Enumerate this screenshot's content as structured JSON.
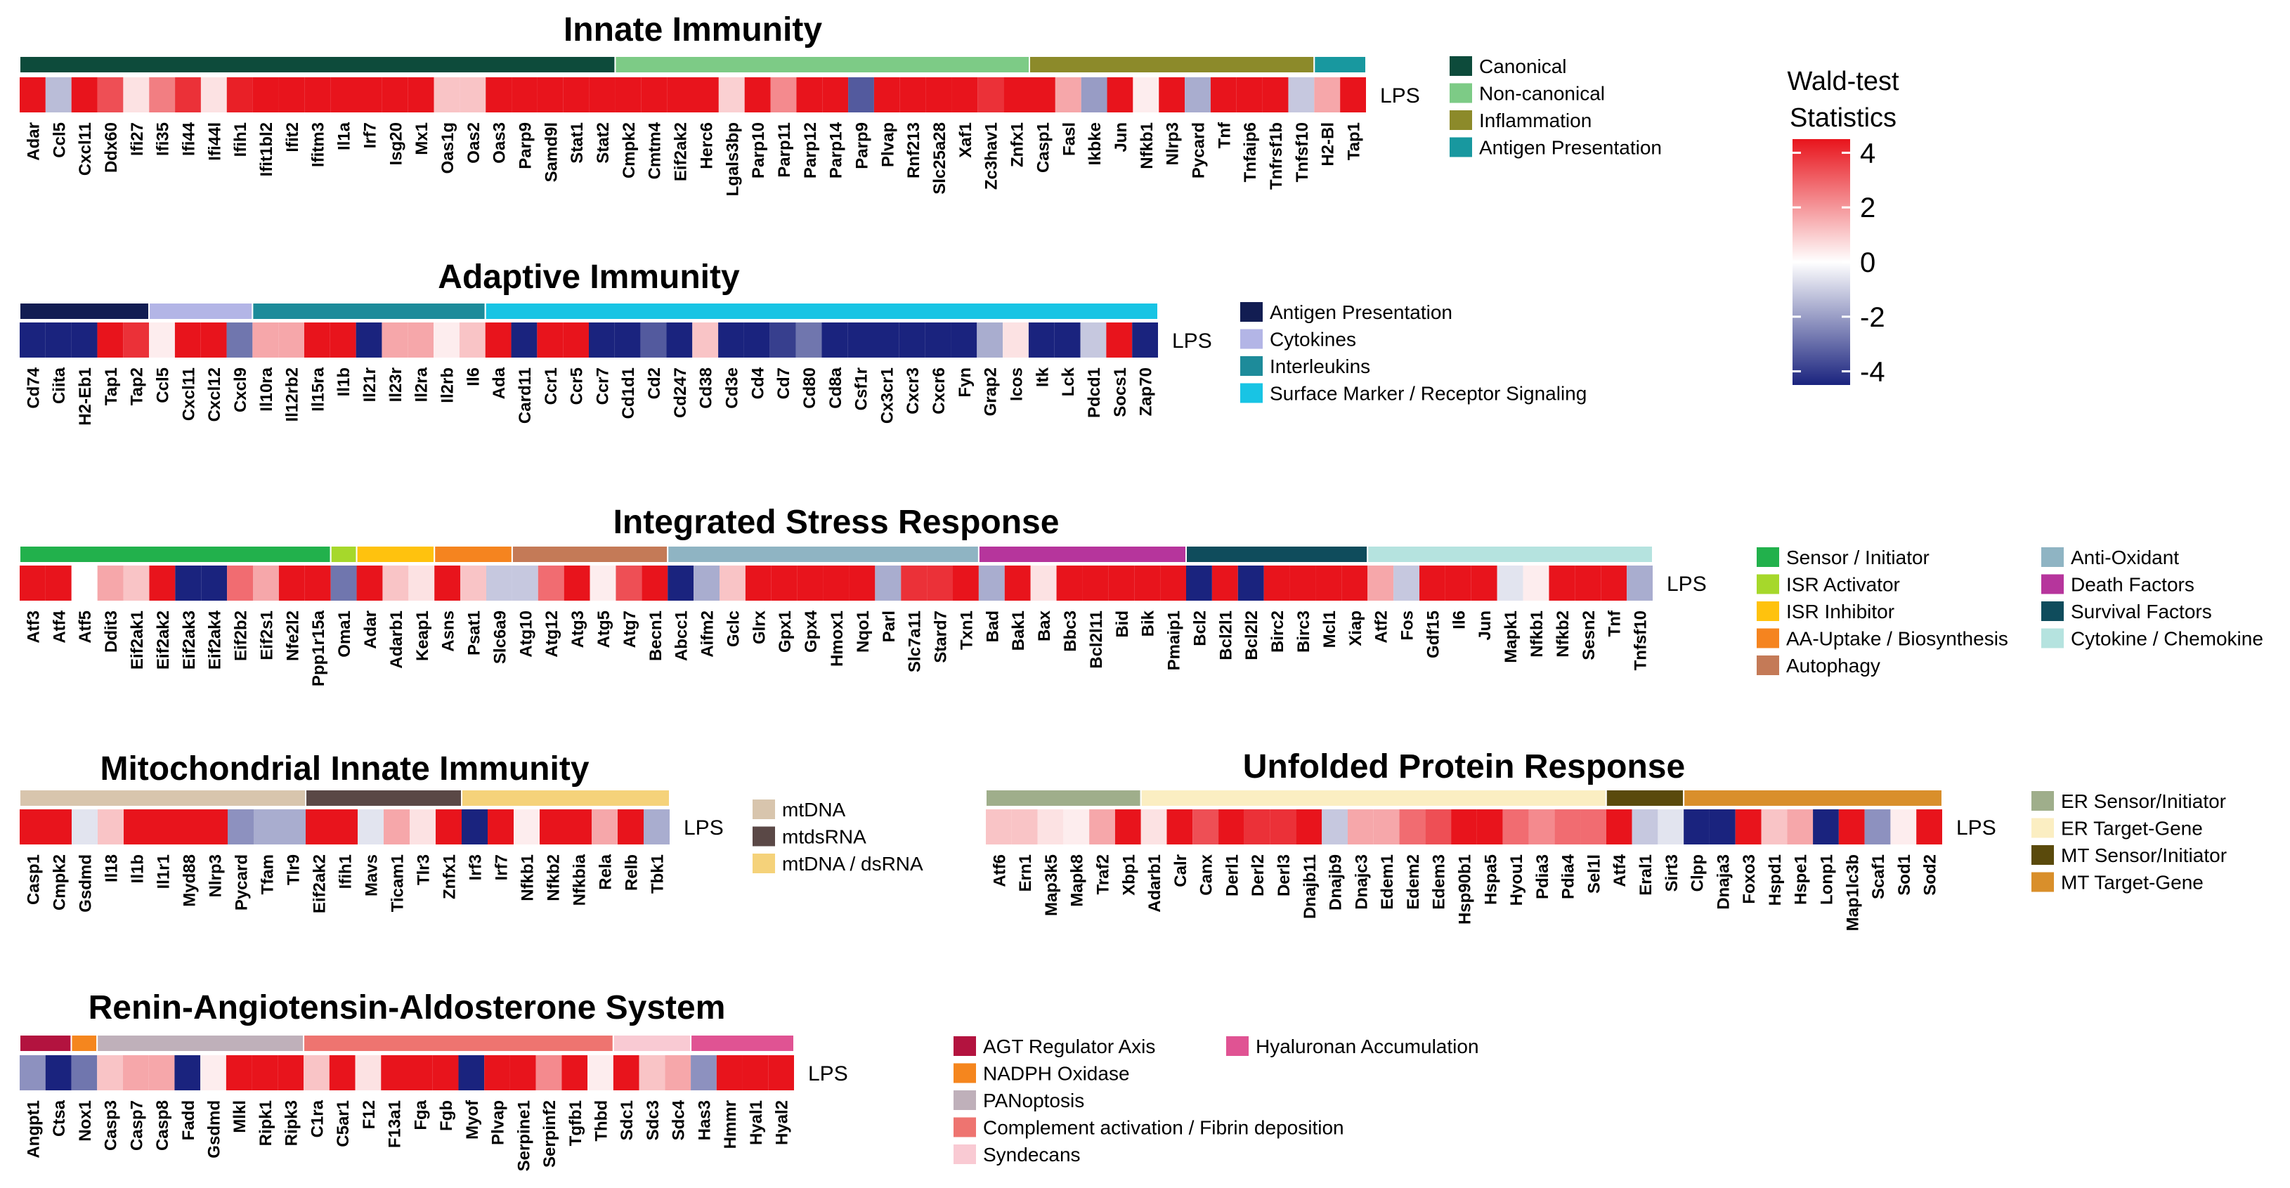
{
  "condition_label": "LPS",
  "colorbar": {
    "title_lines": [
      "Wald-test",
      "Statistics"
    ],
    "ticks": [
      4,
      2,
      0,
      -2,
      -4
    ],
    "range": [
      -4.5,
      4.5
    ],
    "low_color": "#1a237e",
    "mid_color": "#ffffff",
    "high_color": "#e8141c"
  },
  "chart_data": [
    {
      "type": "heatmap",
      "title": "Innate Immunity",
      "categories": [
        {
          "name": "Canonical",
          "color": "#0d4b3b",
          "genes": [
            "Adar",
            "Ccl5",
            "Cxcl11",
            "Ddx60",
            "Ifi27",
            "Ifi35",
            "Ifi44",
            "Ifi44l",
            "Ifih1",
            "Ifit1bl2",
            "Ifit2",
            "Ifitm3",
            "Il1a",
            "Irf7",
            "Isg20",
            "Mx1",
            "Oas1g",
            "Oas2",
            "Oas3",
            "Parp9",
            "Samd9l",
            "Stat1",
            "Stat2"
          ],
          "values": [
            4.5,
            -1.2,
            4.5,
            3.0,
            0.5,
            2.2,
            3.5,
            0.5,
            3.8,
            4.5,
            4.5,
            4.5,
            4.5,
            4.5,
            4.5,
            4.5,
            1.0,
            1.0,
            4.5,
            4.5,
            4.5,
            4.5,
            4.5
          ]
        },
        {
          "name": "Non-canonical",
          "color": "#7dcb86",
          "genes": [
            "Cmpk2",
            "Cmtm4",
            "Eif2ak2",
            "Herc6",
            "Lgals3bp",
            "Parp10",
            "Parp11",
            "Parp12",
            "Parp14",
            "Parp9",
            "Plvap",
            "Rnf213",
            "Slc25a28",
            "Xaf1",
            "Zc3hav1",
            "Znfx1"
          ],
          "values": [
            4.5,
            4.5,
            4.5,
            4.5,
            0.8,
            4.5,
            2.0,
            4.5,
            4.5,
            -3.0,
            4.5,
            4.5,
            4.5,
            4.5,
            3.5,
            4.5
          ]
        },
        {
          "name": "Inflammation",
          "color": "#8c8a2a",
          "genes": [
            "Casp1",
            "Fasl",
            "Ikbke",
            "Jun",
            "Nfkb1",
            "Nlrp3",
            "Pycard",
            "Tnf",
            "Tnfaip6",
            "Tnfrsf1b",
            "Tnfsf10"
          ],
          "values": [
            4.5,
            1.5,
            -1.8,
            4.5,
            0.3,
            4.5,
            -1.5,
            4.5,
            4.5,
            4.5,
            -1.0
          ]
        },
        {
          "name": "Antigen Presentation",
          "color": "#18989f",
          "genes": [
            "H2-Bl",
            "Tap1"
          ],
          "values": [
            1.5,
            4.5
          ]
        }
      ]
    },
    {
      "type": "heatmap",
      "title": "Adaptive Immunity",
      "categories": [
        {
          "name": "Antigen Presentation",
          "color": "#121d52",
          "genes": [
            "Cd74",
            "Ciita",
            "H2-Eb1",
            "Tap1",
            "Tap2"
          ],
          "values": [
            -4.5,
            -4.5,
            -4.5,
            4.5,
            3.5
          ]
        },
        {
          "name": "Cytokines",
          "color": "#b3b5e6",
          "genes": [
            "Ccl5",
            "Cxcl11",
            "Cxcl12",
            "Cxcl9"
          ],
          "values": [
            0.3,
            4.5,
            4.5,
            -2.5
          ]
        },
        {
          "name": "Interleukins",
          "color": "#1d8b9a",
          "genes": [
            "Il10ra",
            "Il12rb2",
            "Il15ra",
            "Il1b",
            "Il21r",
            "Il23r",
            "Il2ra",
            "Il2rb",
            "Il6"
          ],
          "values": [
            1.5,
            1.5,
            4.5,
            4.5,
            -4.5,
            1.5,
            1.5,
            0.3,
            1.0
          ]
        },
        {
          "name": "Surface Marker / Receptor Signaling",
          "color": "#18c4e4",
          "genes": [
            "Ada",
            "Card11",
            "Ccr1",
            "Ccr5",
            "Ccr7",
            "Cd1d1",
            "Cd2",
            "Cd247",
            "Cd38",
            "Cd3e",
            "Cd4",
            "Cd7",
            "Cd80",
            "Cd8a",
            "Csf1r",
            "Cx3cr1",
            "Cxcr3",
            "Cxcr6",
            "Fyn",
            "Grap2",
            "Icos",
            "Itk",
            "Lck",
            "Pdcd1",
            "Socs1",
            "Zap70"
          ],
          "values": [
            4.5,
            -4.5,
            4.5,
            4.5,
            -4.5,
            -4.5,
            -3.0,
            -4.5,
            1.0,
            -4.5,
            -4.5,
            -3.5,
            -2.5,
            -4.5,
            -4.5,
            -4.5,
            -4.5,
            -4.5,
            -4.5,
            -1.5,
            0.5,
            -4.5,
            -4.5,
            -1.0,
            4.5,
            -4.5
          ]
        }
      ]
    },
    {
      "type": "heatmap",
      "title": "Integrated Stress Response",
      "categories": [
        {
          "name": "Sensor / Initiator",
          "color": "#22b14c",
          "genes": [
            "Atf3",
            "Atf4",
            "Atf5",
            "Ddit3",
            "Eif2ak1",
            "Eif2ak2",
            "Eif2ak3",
            "Eif2ak4",
            "Eif2b2",
            "Eif2s1",
            "Nfe2l2",
            "Ppp1r15a"
          ],
          "values": [
            4.5,
            4.5,
            0.0,
            1.5,
            1.0,
            4.5,
            -4.5,
            -4.5,
            2.5,
            1.5,
            4.5,
            4.5
          ]
        },
        {
          "name": "ISR Activator",
          "color": "#a6d82b",
          "genes": [
            "Oma1"
          ],
          "values": [
            -2.5
          ]
        },
        {
          "name": "ISR Inhibitor",
          "color": "#ffc20e",
          "genes": [
            "Adar",
            "Adarb1",
            "Keap1"
          ],
          "values": [
            4.5,
            1.0,
            0.5
          ]
        },
        {
          "name": "AA-Uptake / Biosynthesis",
          "color": "#f5841f",
          "genes": [
            "Asns",
            "Psat1",
            "Slc6a9"
          ],
          "values": [
            4.5,
            1.0,
            -1.0
          ]
        },
        {
          "name": "Autophagy",
          "color": "#c47a57",
          "genes": [
            "Atg10",
            "Atg12",
            "Atg3",
            "Atg5",
            "Atg7",
            "Becn1"
          ],
          "values": [
            -1.0,
            2.5,
            4.5,
            0.3,
            3.0,
            4.5
          ]
        },
        {
          "name": "Anti-Oxidant",
          "color": "#8fb4c3",
          "genes": [
            "Abcc1",
            "Aifm2",
            "Gclc",
            "Glrx",
            "Gpx1",
            "Gpx4",
            "Hmox1",
            "Nqo1",
            "Parl",
            "Slc7a11",
            "Stard7",
            "Txn1"
          ],
          "values": [
            -4.5,
            -1.5,
            1.0,
            4.5,
            4.5,
            4.5,
            4.5,
            4.5,
            -1.5,
            3.5,
            3.5,
            4.5
          ]
        },
        {
          "name": "Death Factors",
          "color": "#b6359c",
          "genes": [
            "Bad",
            "Bak1",
            "Bax",
            "Bbc3",
            "Bcl2l11",
            "Bid",
            "Bik",
            "Pmaip1"
          ],
          "values": [
            -1.5,
            4.5,
            0.5,
            4.5,
            4.5,
            4.5,
            4.5,
            4.5
          ]
        },
        {
          "name": "Survival Factors",
          "color": "#0f4c5c",
          "genes": [
            "Bcl2",
            "Bcl2l1",
            "Bcl2l2",
            "Birc2",
            "Birc3",
            "Mcl1",
            "Xiap"
          ],
          "values": [
            -4.5,
            4.5,
            -4.5,
            4.5,
            4.5,
            4.5,
            4.5
          ]
        },
        {
          "name": "Cytokine / Chemokine",
          "color": "#b5e3df",
          "genes": [
            "Atf2",
            "Fos",
            "Gdf15",
            "Il6",
            "Jun",
            "Mapk1",
            "Nfkb1",
            "Nfkb2",
            "Sesn2",
            "Tnf",
            "Tnfsf10"
          ],
          "values": [
            1.5,
            -1.0,
            4.5,
            4.5,
            4.5,
            -0.5,
            0.3,
            4.5,
            4.5,
            4.5,
            -1.5
          ]
        }
      ]
    },
    {
      "type": "heatmap",
      "title": "Mitochondrial Innate Immunity",
      "categories": [
        {
          "name": "mtDNA",
          "color": "#d8c5ad",
          "genes": [
            "Casp1",
            "Cmpk2",
            "Gsdmd",
            "Il18",
            "Il1b",
            "Il1r1",
            "Myd88",
            "Nlrp3",
            "Pycard",
            "Tfam",
            "Tlr9"
          ],
          "values": [
            4.5,
            4.5,
            -0.5,
            1.0,
            4.5,
            4.5,
            4.5,
            4.5,
            -2.0,
            -1.5,
            -1.5
          ]
        },
        {
          "name": "mtdsRNA",
          "color": "#5a4846",
          "genes": [
            "Eif2ak2",
            "Ifih1",
            "Mavs",
            "Ticam1",
            "Tlr3",
            "Znfx1"
          ],
          "values": [
            4.5,
            4.5,
            -0.5,
            1.5,
            0.5,
            4.5
          ]
        },
        {
          "name": "mtDNA / dsRNA",
          "color": "#f5d27a",
          "genes": [
            "Irf3",
            "Irf7",
            "Nfkb1",
            "Nfkb2",
            "Nfkbia",
            "Rela",
            "Relb",
            "Tbk1"
          ],
          "values": [
            -4.5,
            4.5,
            0.3,
            4.5,
            4.5,
            1.5,
            4.5,
            -1.5
          ]
        }
      ]
    },
    {
      "type": "heatmap",
      "title": "Unfolded Protein Response",
      "categories": [
        {
          "name": "ER Sensor/Initiator",
          "color": "#9fae8b",
          "genes": [
            "Atf6",
            "Ern1",
            "Map3k5",
            "Mapk8",
            "Traf2",
            "Xbp1"
          ],
          "values": [
            1.0,
            1.0,
            0.5,
            0.3,
            1.5,
            4.5
          ]
        },
        {
          "name": "ER Target-Gene",
          "color": "#fbeec2",
          "genes": [
            "Adarb1",
            "Calr",
            "Canx",
            "Derl1",
            "Derl2",
            "Derl3",
            "Dnajb11",
            "Dnajb9",
            "Dnajc3",
            "Edem1",
            "Edem2",
            "Edem3",
            "Hsp90b1",
            "Hspa5",
            "Hyou1",
            "Pdia3",
            "Pdia4",
            "Sel1l"
          ],
          "values": [
            0.5,
            4.5,
            3.0,
            4.5,
            3.5,
            3.5,
            4.5,
            -1.0,
            1.5,
            1.5,
            2.5,
            3.0,
            4.5,
            4.5,
            2.5,
            2.0,
            2.5,
            2.5
          ]
        },
        {
          "name": "MT Sensor/Initiator",
          "color": "#5a4a0c",
          "genes": [
            "Atf4",
            "Eral1",
            "Sirt3"
          ],
          "values": [
            4.5,
            -1.0,
            -0.5
          ]
        },
        {
          "name": "MT Target-Gene",
          "color": "#d98f2b",
          "genes": [
            "Clpp",
            "Dnaja3",
            "Foxo3",
            "Hspd1",
            "Hspe1",
            "Lonp1",
            "Map1lc3b",
            "Scaf1",
            "Sod1",
            "Sod2"
          ],
          "values": [
            -4.5,
            -4.5,
            4.5,
            1.0,
            1.5,
            -4.5,
            4.5,
            -2.0,
            0.3,
            4.5
          ]
        }
      ]
    },
    {
      "type": "heatmap",
      "title": "Renin-Angiotensin-Aldosterone System",
      "categories": [
        {
          "name": "AGT Regulator Axis",
          "color": "#b3133f",
          "genes": [
            "Angpt1",
            "Ctsa"
          ],
          "values": [
            -2.0,
            -4.5
          ]
        },
        {
          "name": "NADPH Oxidase",
          "color": "#f5861e",
          "genes": [
            "Nox1"
          ],
          "values": [
            -2.5
          ]
        },
        {
          "name": "PANoptosis",
          "color": "#bfb0ba",
          "genes": [
            "Casp3",
            "Casp7",
            "Casp8",
            "Fadd",
            "Gsdmd",
            "Mlkl",
            "Ripk1",
            "Ripk3"
          ],
          "values": [
            1.0,
            1.5,
            1.5,
            -4.5,
            0.3,
            4.5,
            4.5,
            4.5
          ]
        },
        {
          "name": "Complement activation / Fibrin deposition",
          "color": "#ee7470",
          "genes": [
            "C1ra",
            "C5ar1",
            "F12",
            "F13a1",
            "Fga",
            "Fgb",
            "Myof",
            "Plvap",
            "Serpine1",
            "Serpinf2",
            "Tgfb1",
            "Thbd"
          ],
          "values": [
            1.0,
            4.5,
            0.5,
            4.5,
            4.5,
            4.5,
            -4.5,
            4.5,
            4.5,
            2.0,
            4.5,
            0.3
          ]
        },
        {
          "name": "Syndecans",
          "color": "#f9cad3",
          "genes": [
            "Sdc1",
            "Sdc3",
            "Sdc4"
          ],
          "values": [
            4.5,
            1.0,
            1.5
          ]
        },
        {
          "name": "Hyaluronan Accumulation",
          "color": "#e05393",
          "genes": [
            "Has3",
            "Hmmr",
            "Hyal1",
            "Hyal2"
          ],
          "values": [
            -2.0,
            4.5,
            4.5,
            4.5
          ]
        }
      ]
    }
  ]
}
